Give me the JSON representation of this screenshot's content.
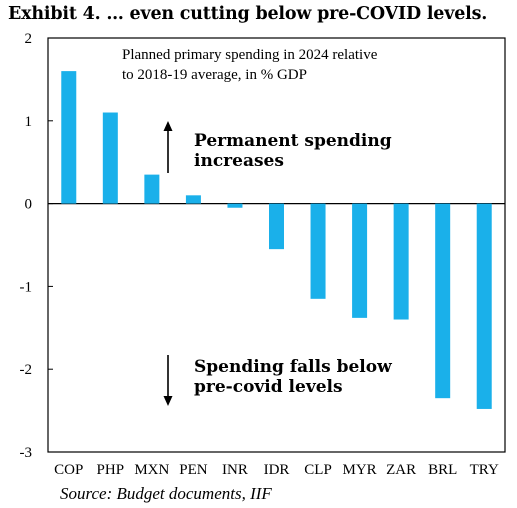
{
  "chart_data": {
    "type": "bar",
    "title": "Exhibit 4. … even cutting below pre-COVID levels.",
    "subtitle_lines": [
      "Planned primary spending in 2024 relative",
      "to 2018-19 average, in % GDP"
    ],
    "categories": [
      "COP",
      "PHP",
      "MXN",
      "PEN",
      "INR",
      "IDR",
      "CLP",
      "MYR",
      "ZAR",
      "BRL",
      "TRY"
    ],
    "values": [
      1.6,
      1.1,
      0.35,
      0.1,
      -0.05,
      -0.55,
      -1.15,
      -1.38,
      -1.4,
      -2.35,
      -2.48
    ],
    "ylim": [
      -3,
      2
    ],
    "yticks": [
      2,
      1,
      0,
      -1,
      -2,
      -3
    ],
    "grid": false,
    "bar_color": "#1ab0ea",
    "annotations": {
      "up": [
        "Permanent spending",
        "increases"
      ],
      "down": [
        "Spending falls below",
        "pre-covid levels"
      ]
    },
    "source": "Source: Budget documents, IIF"
  }
}
